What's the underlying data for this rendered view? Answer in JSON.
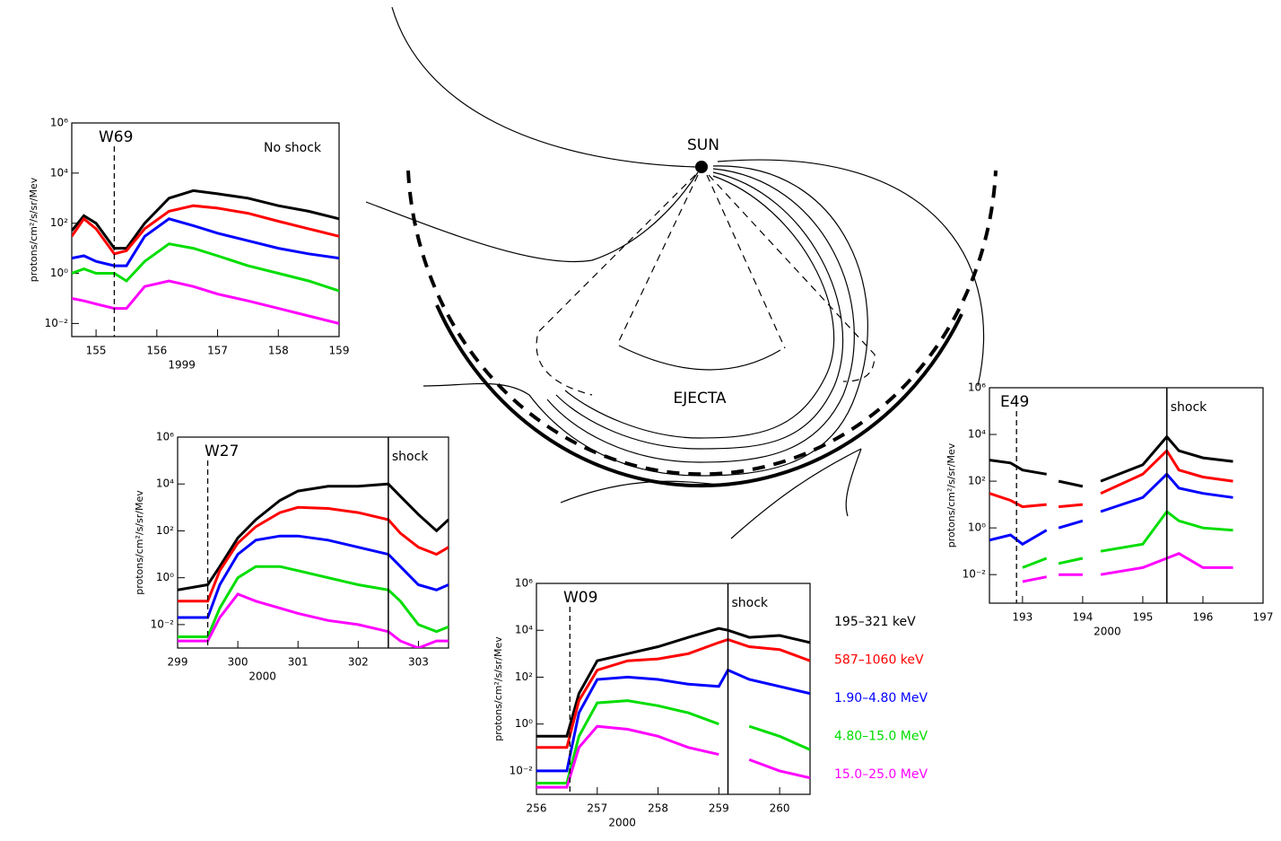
{
  "chart_data": [
    {
      "type": "line",
      "label": "W69",
      "annotation": "No shock",
      "xlabel": "1999",
      "ylabel": "protons/cm²/s/sr/Mev",
      "log_y": true,
      "event_x": 155.3,
      "xlim": [
        154.6,
        159
      ],
      "xticks": [
        155,
        156,
        157,
        158,
        159
      ],
      "ylim": [
        0.003,
        1000000
      ],
      "yticks": [
        {
          "value": 0.01,
          "label": "10⁻²"
        },
        {
          "value": 1,
          "label": "10⁰"
        },
        {
          "value": 100,
          "label": "10²"
        },
        {
          "value": 10000,
          "label": "10⁴"
        },
        {
          "value": 1000000,
          "label": "10⁶"
        }
      ],
      "x": [
        154.6,
        154.8,
        155.0,
        155.3,
        155.5,
        155.8,
        156.2,
        156.6,
        157.0,
        157.5,
        158.0,
        158.5,
        159.0
      ],
      "series": [
        {
          "color": "#000000",
          "values": [
            50,
            200,
            100,
            10,
            10,
            100,
            1000,
            2000,
            1500,
            1000,
            500,
            300,
            150
          ]
        },
        {
          "color": "#ff0000",
          "values": [
            30,
            150,
            60,
            6,
            8,
            60,
            300,
            500,
            400,
            250,
            120,
            60,
            30
          ]
        },
        {
          "color": "#0000ff",
          "values": [
            4,
            5,
            3,
            2,
            2,
            30,
            150,
            80,
            40,
            20,
            10,
            6,
            4
          ]
        },
        {
          "color": "#00dd00",
          "values": [
            1,
            1.5,
            1,
            1,
            0.5,
            3,
            15,
            10,
            5,
            2,
            1,
            0.5,
            0.2
          ]
        },
        {
          "color": "#ff00ff",
          "values": [
            0.1,
            0.08,
            0.06,
            0.04,
            0.04,
            0.3,
            0.5,
            0.3,
            0.15,
            0.08,
            0.04,
            0.02,
            0.01
          ]
        }
      ]
    },
    {
      "type": "line",
      "label": "W27",
      "annotation": "shock",
      "xlabel": "2000",
      "ylabel": "protons/cm²/s/sr/Mev",
      "log_y": true,
      "event_x": 299.5,
      "shock_x": 302.5,
      "xlim": [
        299,
        303.5
      ],
      "xticks": [
        299,
        300,
        301,
        302,
        303
      ],
      "ylim": [
        0.001,
        1000000
      ],
      "yticks": [
        {
          "value": 0.01,
          "label": "10⁻²"
        },
        {
          "value": 1,
          "label": "10⁰"
        },
        {
          "value": 100,
          "label": "10²"
        },
        {
          "value": 10000,
          "label": "10⁴"
        },
        {
          "value": 1000000,
          "label": "10⁶"
        }
      ],
      "x": [
        299,
        299.5,
        299.7,
        300,
        300.3,
        300.7,
        301,
        301.5,
        302,
        302.5,
        302.7,
        303,
        303.3,
        303.5
      ],
      "series": [
        {
          "color": "#000000",
          "values": [
            0.3,
            0.5,
            3,
            50,
            300,
            2000,
            5000,
            8000,
            8000,
            10000,
            3000,
            500,
            100,
            300
          ]
        },
        {
          "color": "#ff0000",
          "values": [
            0.1,
            0.1,
            2,
            30,
            150,
            600,
            1000,
            900,
            600,
            300,
            80,
            20,
            10,
            20
          ]
        },
        {
          "color": "#0000ff",
          "values": [
            0.02,
            0.02,
            0.5,
            10,
            40,
            60,
            60,
            40,
            20,
            10,
            3,
            0.5,
            0.3,
            0.5
          ]
        },
        {
          "color": "#00dd00",
          "values": [
            0.003,
            0.003,
            0.05,
            1,
            3,
            3,
            2,
            1,
            0.5,
            0.3,
            0.1,
            0.01,
            0.005,
            0.008
          ]
        },
        {
          "color": "#ff00ff",
          "values": [
            0.002,
            0.002,
            0.02,
            0.2,
            0.1,
            0.05,
            0.03,
            0.015,
            0.01,
            0.005,
            0.002,
            0.001,
            0.002,
            0.002
          ]
        }
      ]
    },
    {
      "type": "line",
      "label": "W09",
      "annotation": "shock",
      "xlabel": "2000",
      "ylabel": "protons/cm²/s/sr/Mev",
      "log_y": true,
      "event_x": 256.55,
      "shock_x": 259.15,
      "xlim": [
        256,
        260.5
      ],
      "xticks": [
        256,
        257,
        258,
        259,
        260
      ],
      "ylim": [
        0.001,
        1000000
      ],
      "yticks": [
        {
          "value": 0.01,
          "label": "10⁻²"
        },
        {
          "value": 1,
          "label": "10⁰"
        },
        {
          "value": 100,
          "label": "10²"
        },
        {
          "value": 10000,
          "label": "10⁴"
        },
        {
          "value": 1000000,
          "label": "10⁶"
        }
      ],
      "x": [
        256,
        256.5,
        256.7,
        257,
        257.5,
        258,
        258.5,
        259,
        259.15,
        259.5,
        260,
        260.5
      ],
      "series": [
        {
          "name": "195–321  keV",
          "color": "#000000",
          "values": [
            0.3,
            0.3,
            20,
            500,
            1000,
            2000,
            5000,
            12000,
            10000,
            5000,
            6000,
            3000
          ]
        },
        {
          "name": "587–1060 keV",
          "color": "#ff0000",
          "values": [
            0.1,
            0.1,
            10,
            200,
            500,
            600,
            1000,
            3000,
            4000,
            2000,
            1500,
            500
          ]
        },
        {
          "name": "1.90–4.80 MeV",
          "color": "#0000ff",
          "values": [
            0.01,
            0.01,
            3,
            80,
            100,
            80,
            50,
            40,
            200,
            80,
            40,
            20
          ]
        },
        {
          "name": "4.80–15.0 MeV",
          "color": "#00dd00",
          "values": [
            0.003,
            0.003,
            0.3,
            8,
            10,
            6,
            3,
            1,
            null,
            0.8,
            0.3,
            0.08
          ]
        },
        {
          "name": "15.0–25.0 MeV",
          "color": "#ff00ff",
          "values": [
            0.002,
            0.002,
            0.1,
            0.8,
            0.6,
            0.3,
            0.1,
            0.05,
            null,
            0.03,
            0.01,
            0.005
          ]
        }
      ]
    },
    {
      "type": "line",
      "label": "E49",
      "annotation": "shock",
      "xlabel": "2000",
      "ylabel": "protons/cm²/s/sr/Mev",
      "log_y": true,
      "event_x": 192.9,
      "shock_x": 195.4,
      "xlim": [
        192.45,
        197
      ],
      "xticks": [
        193,
        194,
        195,
        196,
        197
      ],
      "ylim": [
        0.0006,
        1000000
      ],
      "yticks": [
        {
          "value": 0.01,
          "label": "10⁻²"
        },
        {
          "value": 1,
          "label": "10⁰"
        },
        {
          "value": 100,
          "label": "10²"
        },
        {
          "value": 10000,
          "label": "10⁴"
        },
        {
          "value": 1000000,
          "label": "10⁶"
        }
      ],
      "x": [
        192.45,
        192.8,
        193.0,
        193.4,
        193.5,
        193.6,
        194.0,
        194.15,
        194.3,
        195.0,
        195.4,
        195.6,
        196.0,
        196.5
      ],
      "series": [
        {
          "color": "#000000",
          "values": [
            800,
            600,
            300,
            200,
            null,
            100,
            60,
            null,
            100,
            500,
            8000,
            2000,
            1000,
            700
          ]
        },
        {
          "color": "#ff0000",
          "values": [
            30,
            15,
            8,
            10,
            null,
            8,
            10,
            null,
            30,
            200,
            2000,
            300,
            150,
            100
          ]
        },
        {
          "color": "#0000ff",
          "values": [
            0.3,
            0.5,
            0.2,
            0.8,
            null,
            1,
            2,
            null,
            5,
            20,
            200,
            50,
            30,
            20
          ]
        },
        {
          "color": "#00dd00",
          "values": [
            null,
            null,
            0.02,
            0.05,
            null,
            0.03,
            0.05,
            null,
            0.1,
            0.2,
            5,
            2,
            1,
            0.8
          ]
        },
        {
          "color": "#ff00ff",
          "values": [
            null,
            null,
            0.005,
            0.008,
            null,
            0.01,
            0.01,
            null,
            0.01,
            0.02,
            0.05,
            0.08,
            0.02,
            0.02
          ]
        }
      ]
    }
  ],
  "diagram": {
    "sun_label": "SUN",
    "ejecta_label": "EJECTA"
  }
}
